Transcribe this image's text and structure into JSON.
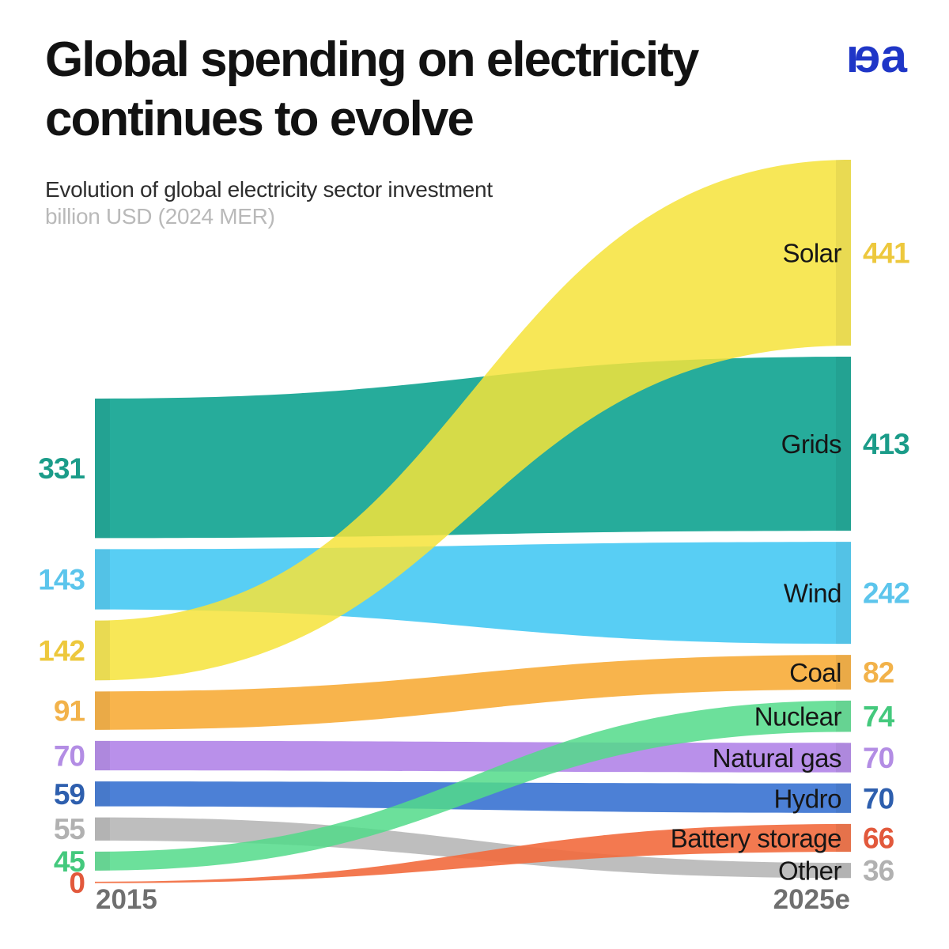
{
  "header": {
    "title_line1": "Global spending on electricity",
    "title_line2": "continues to evolve",
    "subtitle": "Evolution of global electricity sector investment",
    "unit_note": "billion USD (2024 MER)",
    "logo_text": "iea",
    "logo_color": "#1F36C7"
  },
  "chart_data": {
    "type": "flow",
    "title": "Evolution of global electricity sector investment",
    "unit": "billion USD (2024 MER)",
    "years": [
      "2015",
      "2025e"
    ],
    "grid": false,
    "legend_position": "none",
    "series": [
      {
        "name": "Solar",
        "v2015": 142,
        "v2025": 441,
        "color": "#F6E33A",
        "num_color": "#EDC83D",
        "opacity": 0.85
      },
      {
        "name": "Grids",
        "v2015": 331,
        "v2025": 413,
        "color": "#26AC9B",
        "num_color": "#1B9C89",
        "opacity": 1
      },
      {
        "name": "Wind",
        "v2015": 143,
        "v2025": 242,
        "color": "#58CEF4",
        "num_color": "#5CC5EC",
        "opacity": 1
      },
      {
        "name": "Coal",
        "v2015": 91,
        "v2025": 82,
        "color": "#F8B44C",
        "num_color": "#F2B24A",
        "opacity": 1
      },
      {
        "name": "Nuclear",
        "v2015": 45,
        "v2025": 74,
        "color": "#52DA89",
        "num_color": "#44C97D",
        "opacity": 0.85
      },
      {
        "name": "Natural gas",
        "v2015": 70,
        "v2025": 70,
        "color": "#B990EA",
        "num_color": "#B38DE4",
        "opacity": 1
      },
      {
        "name": "Hydro",
        "v2015": 59,
        "v2025": 70,
        "color": "#4C80D6",
        "num_color": "#2E5FAE",
        "opacity": 1
      },
      {
        "name": "Battery storage",
        "v2015": 0,
        "v2025": 66,
        "color": "#F26A3D",
        "num_color": "#E2593C",
        "opacity": 0.9
      },
      {
        "name": "Other",
        "v2015": 55,
        "v2025": 36,
        "color": "#BEBEBE",
        "num_color": "#B1B1B1",
        "opacity": 1
      }
    ],
    "left_order": [
      "Grids",
      "Wind",
      "Solar",
      "Coal",
      "Natural gas",
      "Hydro",
      "Other",
      "Nuclear",
      "Battery storage"
    ],
    "right_order": [
      "Solar",
      "Grids",
      "Wind",
      "Coal",
      "Nuclear",
      "Natural gas",
      "Hydro",
      "Battery storage",
      "Other"
    ],
    "draw_order": [
      "Other",
      "Battery storage",
      "Hydro",
      "Natural gas",
      "Coal",
      "Wind",
      "Grids",
      "Nuclear",
      "Solar"
    ],
    "category_label_color": "#161616",
    "axis_label_color": "#6F6F6F"
  }
}
